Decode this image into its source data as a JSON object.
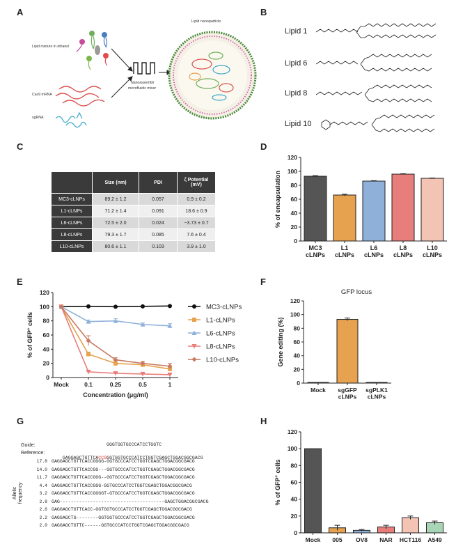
{
  "panels": {
    "A": "A",
    "B": "B",
    "C": "C",
    "D": "D",
    "E": "E",
    "F": "F",
    "G": "G",
    "H": "H"
  },
  "panelA": {
    "lipid_label": "Lipid mixture in ethanol",
    "mrna_label": "Cas9 mRNA",
    "sgrna_label": "sgRNA",
    "mixer_label_1": "Nanoassemblr",
    "mixer_label_2": "microfluidic mixer",
    "lnp_label": "Lipid nanoparticle"
  },
  "panelB": {
    "lipids": [
      "Lipid 1",
      "Lipid 6",
      "Lipid 8",
      "Lipid 10"
    ]
  },
  "panelC": {
    "headers": [
      "",
      "Size (nm)",
      "PDI",
      "ζ Potential (mV)"
    ],
    "rows": [
      [
        "MC3-cLNPs",
        "89.2 ± 1.2",
        "0.057",
        "0.9 ± 0.2"
      ],
      [
        "L1-cLNPs",
        "71.2 ± 1.4",
        "0.091",
        "18.6 ± 0.9"
      ],
      [
        "L6-cLNPs",
        "72.5 ± 2.0",
        "0.024",
        "−3.73 ± 0.7"
      ],
      [
        "L8-cLNPs",
        "79.3 ± 1.7",
        "0.085",
        "7.6 ± 0.4"
      ],
      [
        "L10-cLNPs",
        "80.6 ± 1.1",
        "0.103",
        "3.9 ± 1.0"
      ]
    ]
  },
  "chart_data": [
    {
      "panel": "D",
      "type": "bar",
      "categories": [
        "MC3\ncLNPs",
        "L1\ncLNPs",
        "L6\ncLNPs",
        "L8\ncLNPs",
        "L10\ncLNPs"
      ],
      "values": [
        93,
        66,
        86,
        96,
        90
      ],
      "errors": [
        0.8,
        1.2,
        0.6,
        0.6,
        0.5
      ],
      "colors": [
        "#555555",
        "#e6a24f",
        "#8fb1d9",
        "#e87e7b",
        "#f3c3b4"
      ],
      "ylabel": "% of encapsulation",
      "ylim": [
        0,
        120
      ],
      "yticks": [
        "0",
        "20",
        "40",
        "60",
        "80",
        "100",
        "120"
      ]
    },
    {
      "panel": "E",
      "type": "line",
      "x": [
        "Mock",
        "0.1",
        "0.25",
        "0.5",
        "1"
      ],
      "xlabel": "Concentration (μg/ml)",
      "ylabel": "% of GFP⁺ cells",
      "ylim": [
        0,
        120
      ],
      "yticks": [
        "0",
        "20",
        "40",
        "60",
        "80",
        "100",
        "120"
      ],
      "series": [
        {
          "name": "MC3-cLNPs",
          "color": "#111111",
          "marker": "circle",
          "values": [
            100,
            100.5,
            100,
            100.5,
            101
          ],
          "errors": [
            0,
            0.5,
            0.5,
            0.5,
            0.5
          ]
        },
        {
          "name": "L1-cLNPs",
          "color": "#e6a24f",
          "marker": "square",
          "values": [
            100,
            33,
            20,
            18,
            12
          ],
          "errors": [
            0,
            3,
            4,
            2,
            3
          ]
        },
        {
          "name": "L6-cLNPs",
          "color": "#8fb1d9",
          "marker": "triangle",
          "values": [
            100,
            79,
            80,
            75,
            73
          ],
          "errors": [
            0,
            2,
            3,
            2,
            3
          ]
        },
        {
          "name": "L8-cLNPs",
          "color": "#e87e7b",
          "marker": "triangle-down",
          "values": [
            100,
            8,
            6,
            5,
            4
          ],
          "errors": [
            0,
            1,
            1,
            1,
            1
          ]
        },
        {
          "name": "L10-cLNPs",
          "color": "#c87a63",
          "marker": "diamond",
          "values": [
            100,
            52,
            25,
            20,
            16
          ],
          "errors": [
            0,
            7,
            3,
            3,
            4
          ]
        }
      ]
    },
    {
      "panel": "F",
      "type": "bar",
      "title": "GFP locus",
      "categories": [
        "Mock",
        "sgGFP\ncLNPs",
        "sgPLK1\ncLNPs"
      ],
      "values": [
        1,
        93,
        1
      ],
      "errors": [
        0,
        2,
        0
      ],
      "colors": [
        "#1f4e99",
        "#e6a24f",
        "#1f4e99"
      ],
      "ylabel": "Gene editing (%)",
      "ylim": [
        0,
        120
      ],
      "yticks": [
        "0",
        "20",
        "40",
        "60",
        "80",
        "100",
        "120"
      ]
    },
    {
      "panel": "H",
      "type": "bar",
      "categories": [
        "Mock",
        "005",
        "OV8",
        "NAR",
        "HCT116",
        "A549"
      ],
      "values": [
        100,
        6,
        3,
        7,
        18,
        12
      ],
      "errors": [
        0,
        3,
        1,
        2,
        2,
        2
      ],
      "colors": [
        "#555555",
        "#e6a24f",
        "#8fb1d9",
        "#e87e7b",
        "#f3c3b4",
        "#a8d5b5"
      ],
      "ylabel": "% of GFP⁺ cells",
      "ylim": [
        0,
        120
      ],
      "yticks": [
        "0",
        "20",
        "40",
        "60",
        "80",
        "100",
        "120"
      ]
    }
  ],
  "panelG": {
    "guide_label": "Guide:",
    "guide_seq": "GGGTGGTGCCCATCCTGGTC",
    "reference_label": "Reference:",
    "ref_prefix": "GAGGAGCTGTTCA",
    "ref_pam": "CCG",
    "ref_suffix": "GGTGGTGCCCATCCTGGTCGAGCTGGACGGCGACG",
    "side_label_1": "Allelic",
    "side_label_2": "frequency",
    "alleles": [
      {
        "freq": "17.8",
        "seq": "GAGGAGCTGTTCACCGGGG-GGTGCCCATCCTGGTCGAGCTGGACGGCGACG"
      },
      {
        "freq": "14.0",
        "seq": "GAGGAGCTGTTCACCGG---GGTGCCCATCCTGGTCGAGCTGGACGGCGACG"
      },
      {
        "freq": "11.7",
        "seq": "GAGGAGCTGTTCACCGGG--GGTGCCCATCCTGGTCGAGCTGGACGGCGACG"
      },
      {
        "freq": "4.4",
        "seq": "GAGGAGCTGTTCACCGGG-GGTGCCCATCCTGGTCGAGCTGGACGGCGACG"
      },
      {
        "freq": "3.2",
        "seq": "GAGGAGCTGTTCACCGGGGT-GTGCCCATCCTGGTCGAGCTGGACGGCGACG"
      },
      {
        "freq": "2.8",
        "seq": "GAG--------------------------------------GAGCTGGACGGCGACG"
      },
      {
        "freq": "2.6",
        "seq": "GAGGAGCTGTTCACC-GGTGGTGCCCATCCTGGTCGAGCTGGACGGCGACG"
      },
      {
        "freq": "2.2",
        "seq": "GAGGAGCTG--------GGTGGTGCCCATCCTGGTCGAGCTGGACGGCGACG"
      },
      {
        "freq": "2.0",
        "seq": "GAGGAGCTGTTC------GGTGCCCATCCTGGTCGAGCTGGACGGCGACG"
      }
    ]
  }
}
